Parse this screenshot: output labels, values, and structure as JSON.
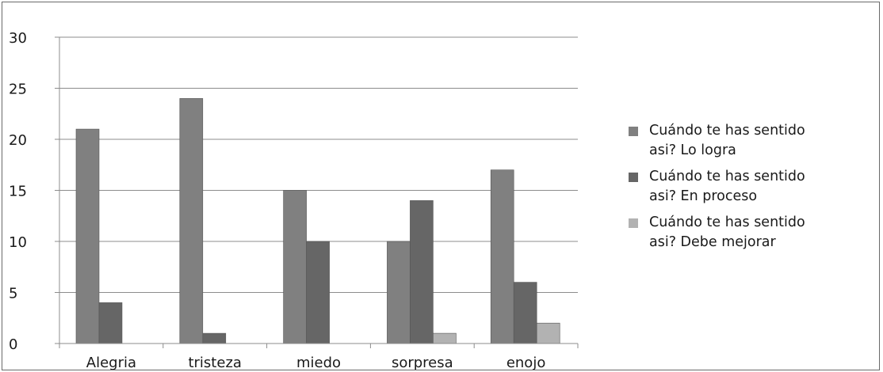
{
  "chart_data": {
    "type": "bar",
    "title": "",
    "xlabel": "",
    "ylabel": "",
    "categories": [
      "Alegria",
      "tristeza",
      "miedo",
      "sorpresa",
      "enojo"
    ],
    "ylim": [
      0,
      30
    ],
    "yticks": [
      "0",
      "5",
      "10",
      "15",
      "20",
      "25",
      "30"
    ],
    "grid": true,
    "legend_position": "right",
    "series": [
      {
        "name": "Cuándo te has sentido asi? Lo logra",
        "values": [
          21,
          24,
          15,
          10,
          17
        ],
        "color": "#808080"
      },
      {
        "name": "Cuándo te has sentido asi? En proceso",
        "values": [
          4,
          1,
          10,
          14,
          6
        ],
        "color": "#666666"
      },
      {
        "name": "Cuándo te has sentido asi? Debe mejorar",
        "values": [
          0,
          0,
          0,
          1,
          2
        ],
        "color": "#b2b2b2"
      }
    ]
  },
  "legend": {
    "items": [
      {
        "line1": "Cuándo te has sentido",
        "line2": "asi? Lo logra"
      },
      {
        "line1": "Cuándo te has sentido",
        "line2": "asi? En proceso"
      },
      {
        "line1": "Cuándo te has sentido",
        "line2": "asi? Debe mejorar"
      }
    ]
  }
}
